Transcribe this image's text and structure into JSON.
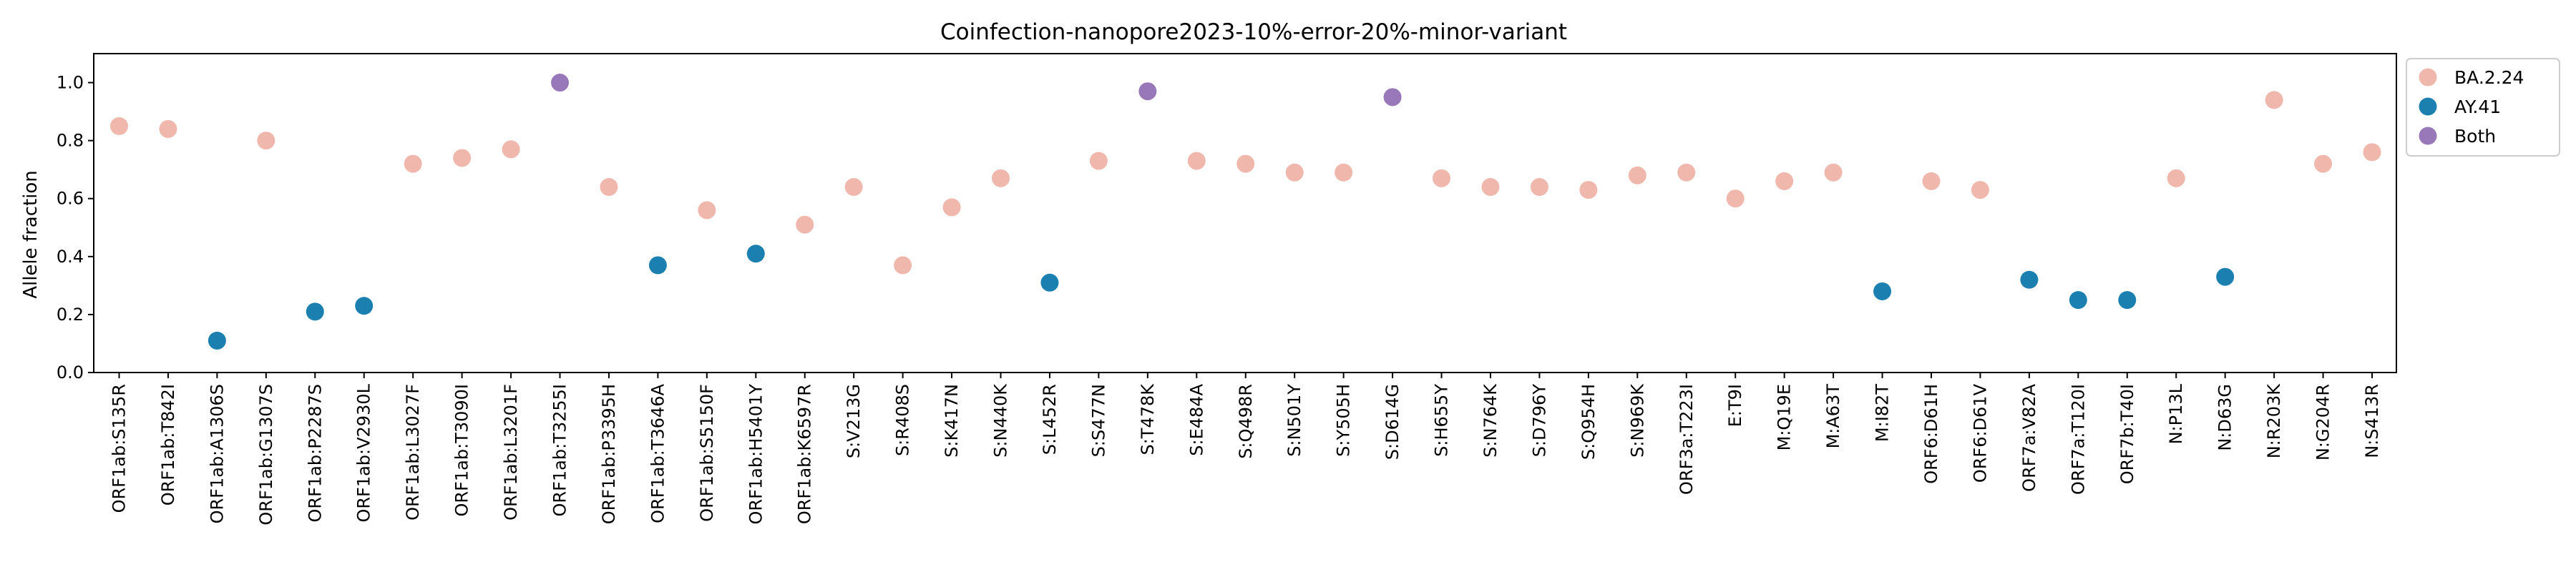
{
  "chart_data": {
    "type": "scatter",
    "title": "Coinfection-nanopore2023-10%-error-20%-minor-variant",
    "xlabel": "",
    "ylabel": "Allele fraction",
    "ylim": [
      0.0,
      1.1
    ],
    "yticks": [
      "0.0",
      "0.2",
      "0.4",
      "0.6",
      "0.8",
      "1.0"
    ],
    "grid": false,
    "legend_position": "outside-top-right",
    "legend": [
      {
        "name": "BA.2.24",
        "color": "#F0B8AC"
      },
      {
        "name": "AY.41",
        "color": "#1B80B0"
      },
      {
        "name": "Both",
        "color": "#9878B8"
      }
    ],
    "categories": [
      "ORF1ab:S135R",
      "ORF1ab:T842I",
      "ORF1ab:A1306S",
      "ORF1ab:G1307S",
      "ORF1ab:P2287S",
      "ORF1ab:V2930L",
      "ORF1ab:L3027F",
      "ORF1ab:T3090I",
      "ORF1ab:L3201F",
      "ORF1ab:T3255I",
      "ORF1ab:P3395H",
      "ORF1ab:T3646A",
      "ORF1ab:S5150F",
      "ORF1ab:H5401Y",
      "ORF1ab:K6597R",
      "S:V213G",
      "S:R408S",
      "S:K417N",
      "S:N440K",
      "S:L452R",
      "S:S477N",
      "S:T478K",
      "S:E484A",
      "S:Q498R",
      "S:N501Y",
      "S:Y505H",
      "S:D614G",
      "S:H655Y",
      "S:N764K",
      "S:D796Y",
      "S:Q954H",
      "S:N969K",
      "ORF3a:T223I",
      "E:T9I",
      "M:Q19E",
      "M:A63T",
      "M:I82T",
      "ORF6:D61H",
      "ORF6:D61V",
      "ORF7a:V82A",
      "ORF7a:T120I",
      "ORF7b:T40I",
      "N:P13L",
      "N:D63G",
      "N:R203K",
      "N:G204R",
      "N:S413R"
    ],
    "values": [
      0.85,
      0.84,
      0.11,
      0.8,
      0.21,
      0.23,
      0.72,
      0.74,
      0.77,
      1.0,
      0.64,
      0.37,
      0.56,
      0.41,
      0.51,
      0.64,
      0.37,
      0.57,
      0.67,
      0.31,
      0.73,
      0.97,
      0.73,
      0.72,
      0.69,
      0.69,
      0.95,
      0.67,
      0.64,
      0.64,
      0.63,
      0.68,
      0.69,
      0.6,
      0.66,
      0.69,
      0.28,
      0.66,
      0.63,
      0.32,
      0.25,
      0.25,
      0.67,
      0.33,
      0.94,
      0.72,
      0.76
    ],
    "groups": [
      "BA.2.24",
      "BA.2.24",
      "AY.41",
      "BA.2.24",
      "AY.41",
      "AY.41",
      "BA.2.24",
      "BA.2.24",
      "BA.2.24",
      "Both",
      "BA.2.24",
      "AY.41",
      "BA.2.24",
      "AY.41",
      "BA.2.24",
      "BA.2.24",
      "BA.2.24",
      "BA.2.24",
      "BA.2.24",
      "AY.41",
      "BA.2.24",
      "Both",
      "BA.2.24",
      "BA.2.24",
      "BA.2.24",
      "BA.2.24",
      "Both",
      "BA.2.24",
      "BA.2.24",
      "BA.2.24",
      "BA.2.24",
      "BA.2.24",
      "BA.2.24",
      "BA.2.24",
      "BA.2.24",
      "BA.2.24",
      "AY.41",
      "BA.2.24",
      "BA.2.24",
      "AY.41",
      "AY.41",
      "AY.41",
      "BA.2.24",
      "AY.41",
      "BA.2.24",
      "BA.2.24",
      "BA.2.24"
    ]
  }
}
